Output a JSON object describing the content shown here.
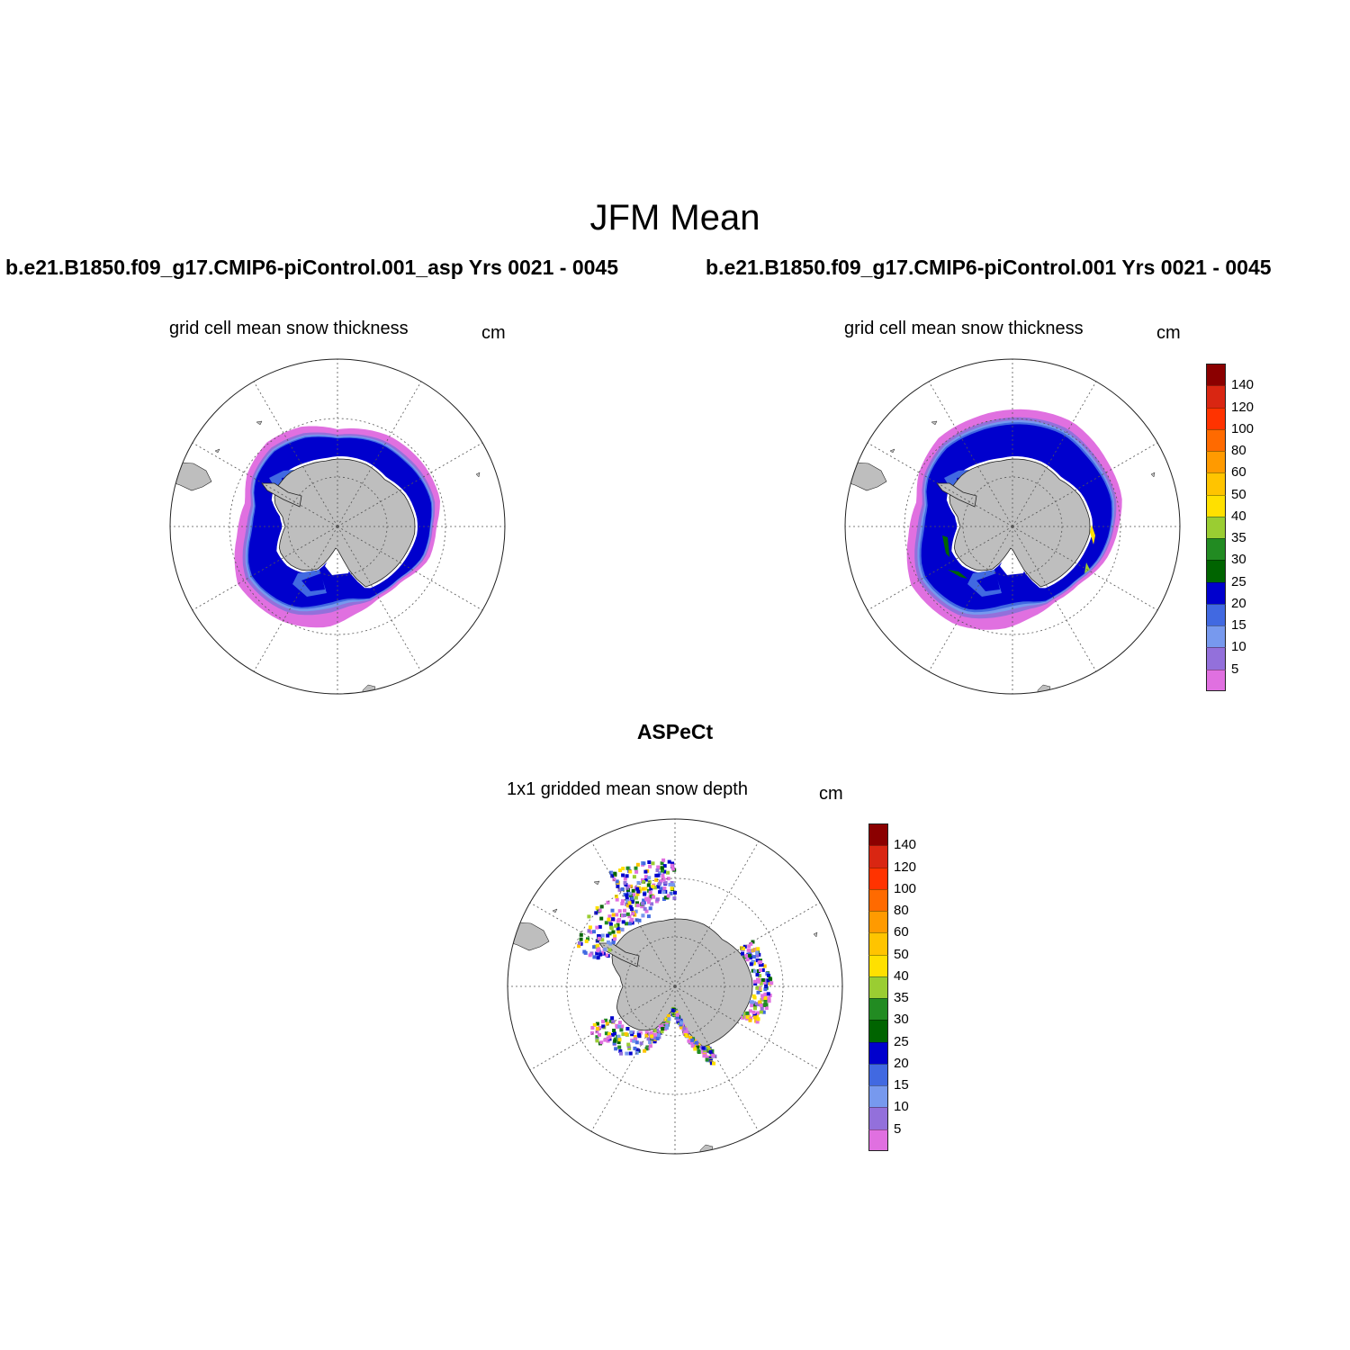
{
  "title": "JFM Mean",
  "units": "cm",
  "panels": [
    {
      "case": "b.e21.B1850.f09_g17.CMIP6-piControl.001_asp  Yrs 0021 - 0045",
      "variable": "grid cell mean snow thickness",
      "units": "cm"
    },
    {
      "case": "b.e21.B1850.f09_g17.CMIP6-piControl.001  Yrs 0021 - 0045",
      "variable": "grid cell mean snow thickness",
      "units": "cm"
    },
    {
      "case": "ASPeCt",
      "variable": "1x1 gridded mean snow depth",
      "units": "cm"
    }
  ],
  "colorbar": {
    "labels": [
      "140",
      "120",
      "100",
      "80",
      "60",
      "50",
      "40",
      "35",
      "30",
      "25",
      "20",
      "15",
      "10",
      "5"
    ],
    "colors": [
      "#8b0000",
      "#d92612",
      "#ff3300",
      "#ff6a00",
      "#ff9a00",
      "#ffc400",
      "#ffe000",
      "#9acd32",
      "#228b22",
      "#006400",
      "#0000cd",
      "#4169e1",
      "#7799ee",
      "#9370db",
      "#e070e0"
    ]
  },
  "map_colors": {
    "land": "#bebebe",
    "grid_line": "#555555",
    "outline": "#222222"
  }
}
